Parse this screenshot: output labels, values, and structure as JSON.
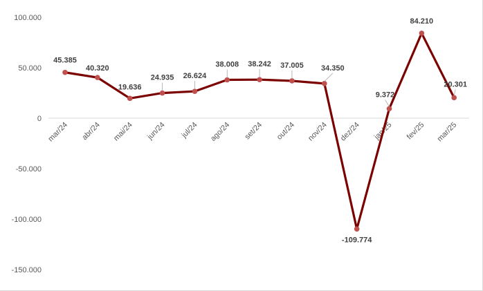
{
  "chart_data": {
    "type": "line",
    "title": "",
    "xlabel": "",
    "ylabel": "",
    "categories": [
      "mar/24",
      "abr/24",
      "mai/24",
      "jun/24",
      "jul/24",
      "ago/24",
      "set/24",
      "out/24",
      "nov/24",
      "dez/24",
      "jan/25",
      "fev/25",
      "mar/25"
    ],
    "series": [
      {
        "values": [
          45385,
          40320,
          19636,
          24935,
          26624,
          38008,
          38242,
          37005,
          34350,
          -109774,
          9372,
          84210,
          20301
        ],
        "data_labels": [
          "45.385",
          "40.320",
          "19.636",
          "24.935",
          "26.624",
          "38.008",
          "38.242",
          "37.005",
          "34.350",
          "-109.774",
          "9.372",
          "84.210",
          "20.301"
        ],
        "color": "#7b0000",
        "marker_color": "#c0504d"
      }
    ],
    "ylim": [
      -150000,
      100000
    ],
    "yticks": [
      100000,
      50000,
      0,
      -50000,
      -100000,
      -150000
    ],
    "ytick_labels": [
      "100.000",
      "50.000",
      "0",
      "-50.000",
      "-100.000",
      "-150.000"
    ],
    "grid": false,
    "legend": "none"
  }
}
